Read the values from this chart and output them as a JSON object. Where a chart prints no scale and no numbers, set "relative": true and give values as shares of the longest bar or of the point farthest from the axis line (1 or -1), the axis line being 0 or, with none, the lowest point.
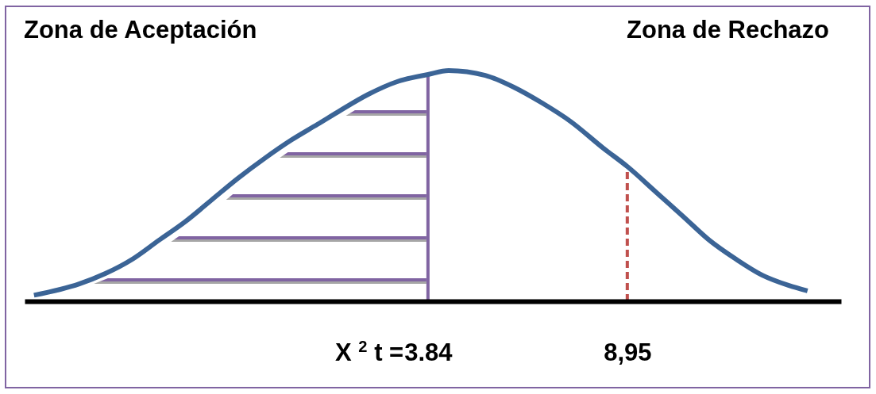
{
  "chart_data": {
    "type": "line",
    "relative": true,
    "xlim": [
      -6.5,
      14.43
    ],
    "xticks": [
      3.84,
      {
        "value": 8.95,
        "label": "8,95"
      }
    ],
    "x": [
      -6.26,
      -5.1,
      -4.43,
      -3.73,
      -3.06,
      -2.39,
      -1.7,
      -1.03,
      -0.35,
      0.34,
      1.01,
      1.6,
      2.31,
      3.05,
      3.84,
      4.37,
      5.31,
      6.04,
      6.77,
      7.5,
      8.34,
      8.95,
      9.7,
      10.38,
      11.05,
      11.74,
      12.41,
      13.08,
      13.57
    ],
    "values": [
      0.026,
      0.075,
      0.12,
      0.183,
      0.264,
      0.344,
      0.44,
      0.533,
      0.619,
      0.699,
      0.767,
      0.828,
      0.897,
      0.952,
      0.983,
      1,
      0.979,
      0.928,
      0.859,
      0.779,
      0.663,
      0.584,
      0.471,
      0.368,
      0.265,
      0.182,
      0.113,
      0.069,
      0.045
    ],
    "color": "#3b6496",
    "ref_lines": [
      {
        "axis": "x",
        "value": 3.84,
        "label": "X $^{2}$ t =",
        "color": "#8064a2"
      },
      {
        "axis": "x",
        "value": 8.95,
        "color": "#c0504d",
        "line_style": "dashed"
      }
    ],
    "annotations": [
      "Zona de Aceptación",
      "Zona de Rechazo"
    ]
  }
}
